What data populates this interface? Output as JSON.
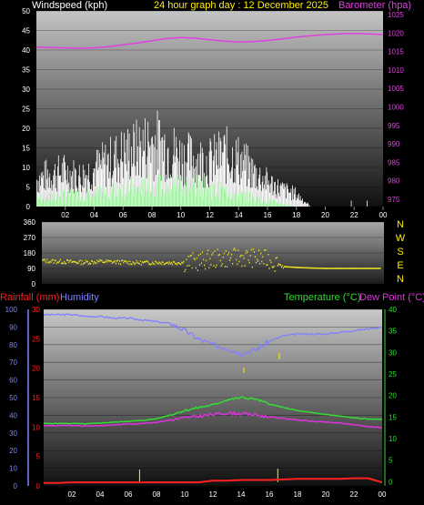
{
  "chart_data": [
    {
      "type": "line",
      "title": "24 hour graph day : 12 December 2025",
      "left_label": "Windspeed (kph)",
      "right_label": "Barometer (hpa)",
      "x_ticks": [
        "02",
        "04",
        "06",
        "08",
        "10",
        "12",
        "14",
        "16",
        "18",
        "20",
        "22",
        "00"
      ],
      "x_range": [
        0,
        24
      ],
      "y_left_ticks": [
        0,
        5,
        10,
        15,
        20,
        25,
        30,
        35,
        40,
        45,
        50
      ],
      "y_left_range": [
        0,
        50
      ],
      "y_right_ticks": [
        975,
        980,
        985,
        990,
        995,
        1000,
        1005,
        1010,
        1015,
        1020,
        1025
      ],
      "y_right_range": [
        973,
        1026
      ],
      "series": [
        {
          "name": "Barometer (hpa)",
          "axis": "right",
          "color": "#e040e0",
          "x": [
            0,
            1,
            2,
            3,
            4,
            5,
            6,
            7,
            8,
            9,
            10,
            11,
            12,
            13,
            14,
            15,
            16,
            17,
            18,
            19,
            20,
            21,
            22,
            23,
            24
          ],
          "values": [
            1016.2,
            1016.1,
            1016.0,
            1015.9,
            1016.0,
            1016.3,
            1016.8,
            1017.3,
            1017.9,
            1018.5,
            1018.8,
            1018.6,
            1018.2,
            1017.8,
            1017.6,
            1017.7,
            1018.0,
            1018.4,
            1018.9,
            1019.3,
            1019.6,
            1019.8,
            1019.9,
            1019.8,
            1019.6
          ]
        },
        {
          "name": "Wind gust (kph)",
          "axis": "left",
          "color": "#ffffff",
          "x": [
            0,
            1,
            2,
            3,
            4,
            5,
            6,
            7,
            8,
            9,
            10,
            11,
            12,
            13,
            14,
            15,
            16,
            17,
            18,
            19,
            20,
            21,
            22,
            23,
            24
          ],
          "values": [
            11,
            13,
            14,
            12,
            15,
            18,
            21,
            23,
            26,
            24,
            20,
            19,
            18,
            21,
            19,
            14,
            10,
            7,
            5,
            0,
            0,
            0,
            0,
            0,
            0
          ]
        },
        {
          "name": "Wind average (kph)",
          "axis": "left",
          "color": "#66ee66",
          "x": [
            0,
            1,
            2,
            3,
            4,
            5,
            6,
            7,
            8,
            9,
            10,
            11,
            12,
            13,
            14,
            15,
            16,
            17,
            18,
            19,
            20,
            21,
            22,
            23,
            24
          ],
          "values": [
            3,
            3,
            4,
            4,
            4,
            5,
            6,
            6,
            7,
            7,
            8,
            7,
            6,
            5,
            4,
            3,
            2,
            1,
            0,
            0,
            0,
            0,
            0,
            0,
            0
          ]
        }
      ]
    },
    {
      "type": "scatter",
      "left_ticks": [
        "360",
        "270",
        "180",
        "90",
        "0"
      ],
      "right_labels": [
        "N",
        "W",
        "S",
        "E",
        "N"
      ],
      "y_range": [
        0,
        360
      ],
      "series": [
        {
          "name": "Wind direction (deg)",
          "color": "#e8e020",
          "x": [
            0,
            1,
            2,
            3,
            4,
            5,
            6,
            7,
            8,
            9,
            10,
            11,
            12,
            13,
            14,
            15,
            16,
            17,
            18,
            19,
            20,
            21,
            22,
            23,
            24
          ],
          "values": [
            135,
            130,
            128,
            125,
            130,
            128,
            125,
            122,
            125,
            123,
            125,
            130,
            145,
            150,
            155,
            150,
            140,
            100,
            95,
            92,
            90,
            90,
            90,
            90,
            90
          ]
        }
      ]
    },
    {
      "type": "line",
      "left_label_1": "Rainfall (mm)",
      "left_label_2": "Humidity",
      "right_label_1": "Temperature (°C)",
      "right_label_2": "Dew Point (°C)",
      "y_hum_ticks": [
        0,
        10,
        20,
        30,
        40,
        50,
        60,
        70,
        80,
        90,
        100
      ],
      "y_hum_range": [
        0,
        100
      ],
      "y_rain_ticks": [
        0,
        5,
        10,
        15,
        20,
        25,
        30
      ],
      "y_rain_range": [
        0,
        30
      ],
      "y_temp_ticks": [
        0,
        5,
        10,
        15,
        20,
        25,
        30,
        35,
        40
      ],
      "y_temp_range": [
        -1,
        40
      ],
      "x_ticks": [
        "02",
        "04",
        "06",
        "08",
        "10",
        "12",
        "14",
        "16",
        "18",
        "20",
        "22",
        "00"
      ],
      "series": [
        {
          "name": "Humidity",
          "axis": "humidity",
          "color": "#8080ff",
          "x": [
            0,
            1,
            2,
            3,
            4,
            5,
            6,
            7,
            8,
            9,
            10,
            11,
            12,
            13,
            14,
            15,
            16,
            17,
            18,
            19,
            20,
            21,
            22,
            23,
            24
          ],
          "values": [
            97,
            97,
            97,
            96,
            96,
            95,
            95,
            94,
            93,
            92,
            88,
            83,
            80,
            78,
            75,
            77,
            82,
            85,
            86,
            86,
            86,
            87,
            88,
            89,
            90
          ]
        },
        {
          "name": "Temperature (°C)",
          "axis": "temp",
          "color": "#33dd33",
          "x": [
            0,
            1,
            2,
            3,
            4,
            5,
            6,
            7,
            8,
            9,
            10,
            11,
            12,
            13,
            14,
            15,
            16,
            17,
            18,
            19,
            20,
            21,
            22,
            23,
            24
          ],
          "values": [
            13.5,
            13.5,
            13.5,
            13.4,
            13.6,
            13.8,
            14.0,
            14.2,
            14.6,
            15.5,
            16.5,
            17.2,
            17.8,
            19.0,
            19.5,
            19.2,
            18.0,
            17.2,
            16.5,
            16.0,
            15.6,
            15.2,
            14.8,
            14.5,
            14.5
          ]
        },
        {
          "name": "Dew Point (°C)",
          "axis": "temp",
          "color": "#dd33dd",
          "x": [
            0,
            1,
            2,
            3,
            4,
            5,
            6,
            7,
            8,
            9,
            10,
            11,
            12,
            13,
            14,
            15,
            16,
            17,
            18,
            19,
            20,
            21,
            22,
            23,
            24
          ],
          "values": [
            13.0,
            13.0,
            13.0,
            12.9,
            13.0,
            13.2,
            13.4,
            13.5,
            13.8,
            14.3,
            14.8,
            15.2,
            15.6,
            15.9,
            15.8,
            15.5,
            15.0,
            14.7,
            14.3,
            14.0,
            13.8,
            13.6,
            13.2,
            12.8,
            12.5
          ]
        },
        {
          "name": "Rainfall (mm)",
          "axis": "rain",
          "color": "#ff2020",
          "x": [
            0,
            1,
            2,
            3,
            4,
            5,
            6,
            7,
            8,
            9,
            10,
            11,
            12,
            13,
            14,
            15,
            16,
            17,
            18,
            19,
            20,
            21,
            22,
            23,
            24
          ],
          "values": [
            0.5,
            0.5,
            0.6,
            0.6,
            0.6,
            0.6,
            0.6,
            0.6,
            0.6,
            0.6,
            0.6,
            0.6,
            0.9,
            0.9,
            1.0,
            1.0,
            1.0,
            1.1,
            1.2,
            1.2,
            1.2,
            1.2,
            1.3,
            1.3,
            0.6
          ]
        }
      ]
    }
  ],
  "colors": {
    "left_label": "#ffffff",
    "title": "#ffee00",
    "barometer": "#e040e0",
    "direction": "#ffee00",
    "rain": "#ff2020",
    "humidity": "#8080ff",
    "temperature": "#33dd33",
    "dewpoint": "#dd33dd"
  }
}
